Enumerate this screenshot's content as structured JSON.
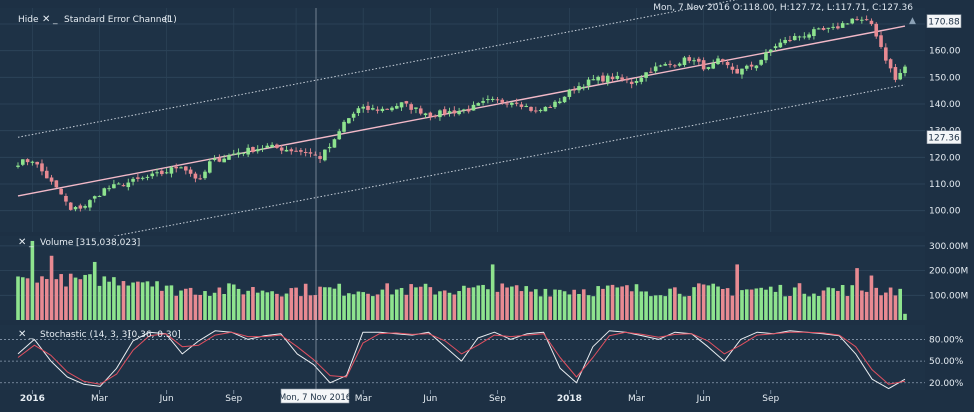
{
  "ohlc_readout": "Mon, 7 Nov 2016  O:118.00, H:127.72, L:117.71, C:127.36",
  "price_panel": {
    "hide_label": "Hide",
    "indicator_label": "Standard Error Channel",
    "indicator_param": "(1)",
    "last_value_label": "127.36",
    "channel_value_label": "170.88"
  },
  "volume_panel": {
    "label": "Volume",
    "value": "[315,038,023]"
  },
  "stoch_panel": {
    "label": "Stochastic (14, 3, 3)",
    "value": "[0.36, 0.30]"
  },
  "crosshair_date_label": "Mon, 7 Nov 2016",
  "colors": {
    "background": "#1d3044",
    "up": "#8ee38e",
    "down": "#e88a92",
    "regression": "#f2b9c8",
    "channel": "#c8d0da",
    "stoch_k": "#e8ecf0",
    "stoch_d": "#e05060"
  },
  "chart_data": [
    {
      "type": "candlestick",
      "x_tick_labels": [
        "2016",
        "Mar",
        "Jun",
        "Sep",
        "2017",
        "Mar",
        "Jun",
        "Sep",
        "2018",
        "Mar",
        "Jun",
        "Sep"
      ],
      "y_tick_labels": [
        "100.00",
        "110.00",
        "120.00",
        "130.00",
        "140.00",
        "150.00",
        "160.00",
        "170.00"
      ],
      "ylim": [
        92,
        176
      ],
      "grid": true,
      "control_points": [
        [
          0,
          118
        ],
        [
          3,
          119
        ],
        [
          9,
          106
        ],
        [
          11,
          100
        ],
        [
          14,
          102
        ],
        [
          18,
          108
        ],
        [
          24,
          111
        ],
        [
          30,
          114
        ],
        [
          34,
          117
        ],
        [
          38,
          111
        ],
        [
          40,
          118
        ],
        [
          46,
          122
        ],
        [
          52,
          124
        ],
        [
          56,
          123
        ],
        [
          60,
          122
        ],
        [
          63,
          120
        ],
        [
          66,
          126
        ],
        [
          68,
          133
        ],
        [
          71,
          138
        ],
        [
          76,
          138
        ],
        [
          80,
          140
        ],
        [
          86,
          136
        ],
        [
          90,
          137
        ],
        [
          94,
          138
        ],
        [
          98,
          141
        ],
        [
          104,
          141
        ],
        [
          108,
          137
        ],
        [
          112,
          140
        ],
        [
          116,
          146
        ],
        [
          120,
          149
        ],
        [
          124,
          150
        ],
        [
          128,
          148
        ],
        [
          132,
          153
        ],
        [
          136,
          155
        ],
        [
          140,
          157
        ],
        [
          144,
          153
        ],
        [
          146,
          156
        ],
        [
          150,
          152
        ],
        [
          154,
          155
        ],
        [
          158,
          162
        ],
        [
          162,
          165
        ],
        [
          166,
          167
        ],
        [
          170,
          168
        ],
        [
          174,
          172
        ],
        [
          176,
          171
        ],
        [
          178,
          170
        ],
        [
          179,
          166
        ],
        [
          181,
          157
        ],
        [
          183,
          149
        ],
        [
          185,
          154
        ]
      ]
    },
    {
      "type": "bar",
      "y_tick_labels": [
        "100.00M",
        "200.00M",
        "300.00M"
      ],
      "ylim": [
        0,
        340
      ]
    },
    {
      "type": "line",
      "y_tick_labels": [
        "20.00%",
        "50.00%",
        "80.00%"
      ],
      "ylim": [
        10,
        100
      ],
      "reference_lines": [
        20,
        50,
        80
      ],
      "series": [
        {
          "values": [
            60,
            80,
            50,
            28,
            18,
            15,
            40,
            78,
            90,
            88,
            60,
            78,
            92,
            90,
            80,
            85,
            88,
            60,
            45,
            20,
            30,
            90,
            90,
            88,
            86,
            90,
            70,
            50,
            82,
            90,
            80,
            88,
            90,
            40,
            20,
            70,
            92,
            90,
            85,
            80,
            90,
            88,
            70,
            50,
            80,
            90,
            88,
            92,
            90,
            88,
            85,
            60,
            25,
            12,
            25
          ]
        },
        {
          "values": [
            55,
            72,
            58,
            35,
            22,
            18,
            32,
            65,
            85,
            88,
            70,
            72,
            86,
            90,
            84,
            84,
            86,
            70,
            52,
            30,
            28,
            75,
            88,
            89,
            87,
            88,
            78,
            60,
            72,
            86,
            84,
            86,
            88,
            55,
            28,
            55,
            85,
            90,
            87,
            83,
            87,
            88,
            78,
            60,
            72,
            86,
            88,
            90,
            90,
            89,
            86,
            70,
            38,
            18,
            22
          ]
        }
      ]
    }
  ]
}
